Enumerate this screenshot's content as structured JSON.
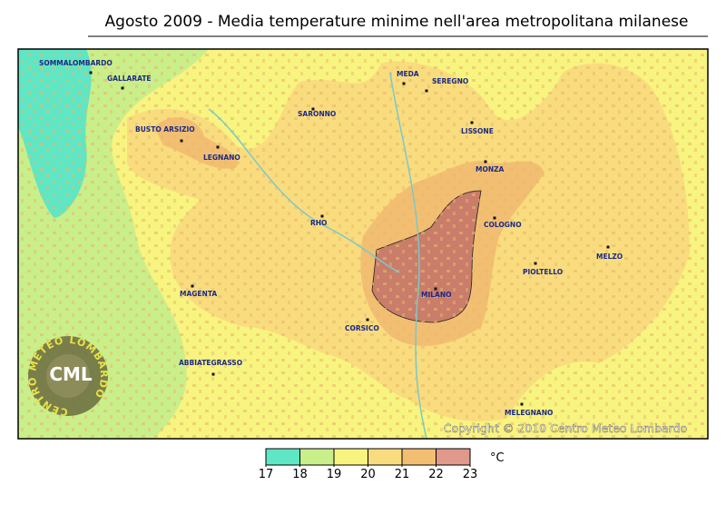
{
  "title": "Agosto 2009 - Media temperature minime nell'area metropolitana milanese",
  "map": {
    "towns": [
      "SOMMALOMBARDO",
      "GALLARATE",
      "BUSTO ARSIZIO",
      "LEGNANO",
      "SARONNO",
      "MEDA",
      "SEREGNO",
      "LISSONE",
      "MONZA",
      "RHO",
      "COLOGNO",
      "MELZO",
      "PIOLTELLO",
      "MILANO",
      "MAGENTA",
      "CORSICO",
      "ABBIATEGRASSO",
      "MELEGNANO"
    ]
  },
  "copyright": "Copyright © 2010 Centro Meteo Lombardo",
  "logo": {
    "ring": "CENTRO METEO LOMBARDO",
    "initials": "CML"
  },
  "legend": {
    "unit": "°C",
    "ticks": [
      17,
      18,
      19,
      20,
      21,
      22,
      23
    ],
    "colors": [
      "#5fe6c4",
      "#c9ef8a",
      "#f8f480",
      "#f9dc7e",
      "#f2bf72",
      "#e0998a"
    ]
  }
}
